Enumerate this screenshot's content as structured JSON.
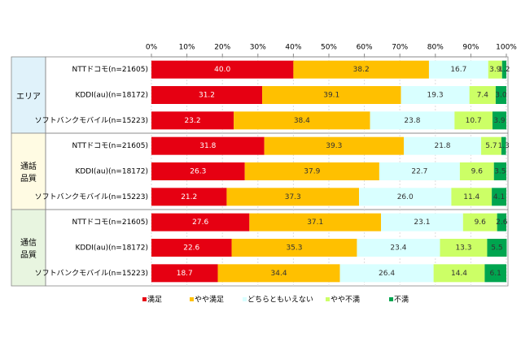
{
  "chart_data": {
    "type": "stacked-bar-horizontal",
    "groups": [
      "エリア",
      "通話\n品質",
      "通信\n品質"
    ],
    "categories": [
      "NTTドコモ(n=21605)",
      "KDDI(au)(n=18172)",
      "ソフトバンクモバイル(n=15223)",
      "NTTドコモ(n=21605)",
      "KDDI(au)(n=18172)",
      "ソフトバンクモバイル(n=15223)",
      "NTTドコモ(n=21605)",
      "KDDI(au)(n=18172)",
      "ソフトバンクモバイル(n=15223)"
    ],
    "series": [
      {
        "name": "満足",
        "color": "#e60012",
        "values": [
          40.0,
          31.2,
          23.2,
          31.8,
          26.3,
          21.2,
          27.6,
          22.6,
          18.7
        ],
        "value_labels": [
          "40.0",
          "31.2",
          "23.2",
          "31.8",
          "26.3",
          "21.2",
          "27.6",
          "22.6",
          "18.7"
        ]
      },
      {
        "name": "やや満足",
        "color": "#ffc000",
        "values": [
          38.2,
          39.1,
          38.4,
          39.3,
          37.9,
          37.3,
          37.1,
          35.3,
          34.4
        ],
        "value_labels": [
          "38.2",
          "39.1",
          "38.4",
          "39.3",
          "37.9",
          "37.3",
          "37.1",
          "35.3",
          "34.4"
        ]
      },
      {
        "name": "どちらともいえない",
        "color": "#d9ffff",
        "values": [
          16.7,
          19.3,
          23.8,
          21.8,
          22.7,
          26.0,
          23.1,
          23.4,
          26.4
        ],
        "value_labels": [
          "16.7",
          "19.3",
          "23.8",
          "21.8",
          "22.7",
          "26.0",
          "23.1",
          "23.4",
          "26.4"
        ]
      },
      {
        "name": "やや不満",
        "color": "#ccff66",
        "values": [
          3.9,
          7.4,
          10.7,
          5.7,
          9.6,
          11.4,
          9.6,
          13.3,
          14.4
        ],
        "value_labels": [
          "3.9",
          "7.4",
          "10.7",
          "5.7",
          "9.6",
          "11.4",
          "9.6",
          "13.3",
          "14.4"
        ]
      },
      {
        "name": "不満",
        "color": "#00a54f",
        "values": [
          1.2,
          3.0,
          3.9,
          1.3,
          3.5,
          4.1,
          2.6,
          5.5,
          6.1
        ],
        "value_labels": [
          "1.2",
          "3.0",
          "3.9",
          "1.3",
          "3.5",
          "4.1",
          "2.6",
          "5.5",
          "6.1"
        ]
      }
    ],
    "xlim": [
      0,
      100
    ],
    "xticks": [
      {
        "value": 0,
        "label": "0%"
      },
      {
        "value": 10,
        "label": "10%"
      },
      {
        "value": 20,
        "label": "20%"
      },
      {
        "value": 30,
        "label": "30%"
      },
      {
        "value": 40,
        "label": "40%"
      },
      {
        "value": 50,
        "label": "50%"
      },
      {
        "value": 60,
        "label": "60%"
      },
      {
        "value": 70,
        "label": "70%"
      },
      {
        "value": 80,
        "label": "80%"
      },
      {
        "value": 90,
        "label": "90%"
      },
      {
        "value": 100,
        "label": "100%"
      }
    ],
    "group_colors": [
      "#e0f2fa",
      "#fffbe3",
      "#e8f5e0"
    ],
    "legend": "bottom"
  }
}
